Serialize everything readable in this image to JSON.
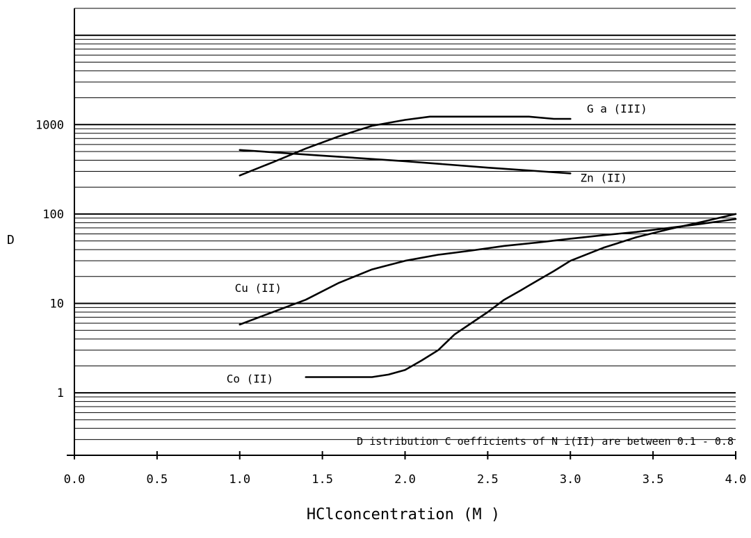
{
  "chart_data": {
    "type": "line",
    "title": "",
    "xlabel": "HClconcentration (M )",
    "ylabel": "D",
    "x_scale": "linear",
    "y_scale": "log",
    "xlim": [
      0.0,
      4.0
    ],
    "ylim": [
      0.2,
      20000
    ],
    "grid": "horizontal log gridlines",
    "legend": "labels placed next to curves",
    "x_ticks": [
      "0.0",
      "0.5",
      "1.0",
      "1.5",
      "2.0",
      "2.5",
      "3.0",
      "3.5",
      "4.0"
    ],
    "y_ticks": [
      {
        "value": 1,
        "label": "1"
      },
      {
        "value": 10,
        "label": "10"
      },
      {
        "value": 100,
        "label": "100"
      },
      {
        "value": 1000,
        "label": "1000"
      }
    ],
    "series": [
      {
        "name": "G a (III)",
        "x": [
          1.0,
          1.2,
          1.4,
          1.6,
          1.8,
          2.0,
          2.15,
          2.4,
          2.6,
          2.75,
          2.9,
          3.0
        ],
        "y": [
          270,
          380,
          540,
          740,
          970,
          1130,
          1230,
          1230,
          1230,
          1230,
          1160,
          1160
        ]
      },
      {
        "name": "Zn (II)",
        "x": [
          1.0,
          1.5,
          2.0,
          2.5,
          3.0
        ],
        "y": [
          520,
          450,
          390,
          330,
          285
        ]
      },
      {
        "name": "Cu (II)",
        "x": [
          1.0,
          1.2,
          1.4,
          1.6,
          1.8,
          2.0,
          2.2,
          2.4,
          2.6,
          2.8,
          3.0,
          3.2,
          3.4,
          3.6,
          3.8,
          4.0
        ],
        "y": [
          5.8,
          8.0,
          11,
          17,
          24,
          30,
          35,
          39,
          44,
          48,
          53,
          58,
          63,
          70,
          78,
          88
        ]
      },
      {
        "name": "Co (II)",
        "x": [
          1.4,
          1.6,
          1.8,
          1.9,
          2.0,
          2.1,
          2.2,
          2.3,
          2.4,
          2.5,
          2.6,
          2.7,
          2.8,
          2.9,
          3.0,
          3.2,
          3.4,
          3.6,
          3.8,
          4.0
        ],
        "y": [
          1.5,
          1.5,
          1.5,
          1.6,
          1.8,
          2.3,
          3.0,
          4.5,
          6.0,
          8.0,
          11,
          14,
          18,
          23,
          30,
          42,
          55,
          68,
          82,
          100
        ]
      }
    ],
    "annotations": [
      "D istribution C oefficients of N i(II) are between 0.1 - 0.8"
    ]
  }
}
